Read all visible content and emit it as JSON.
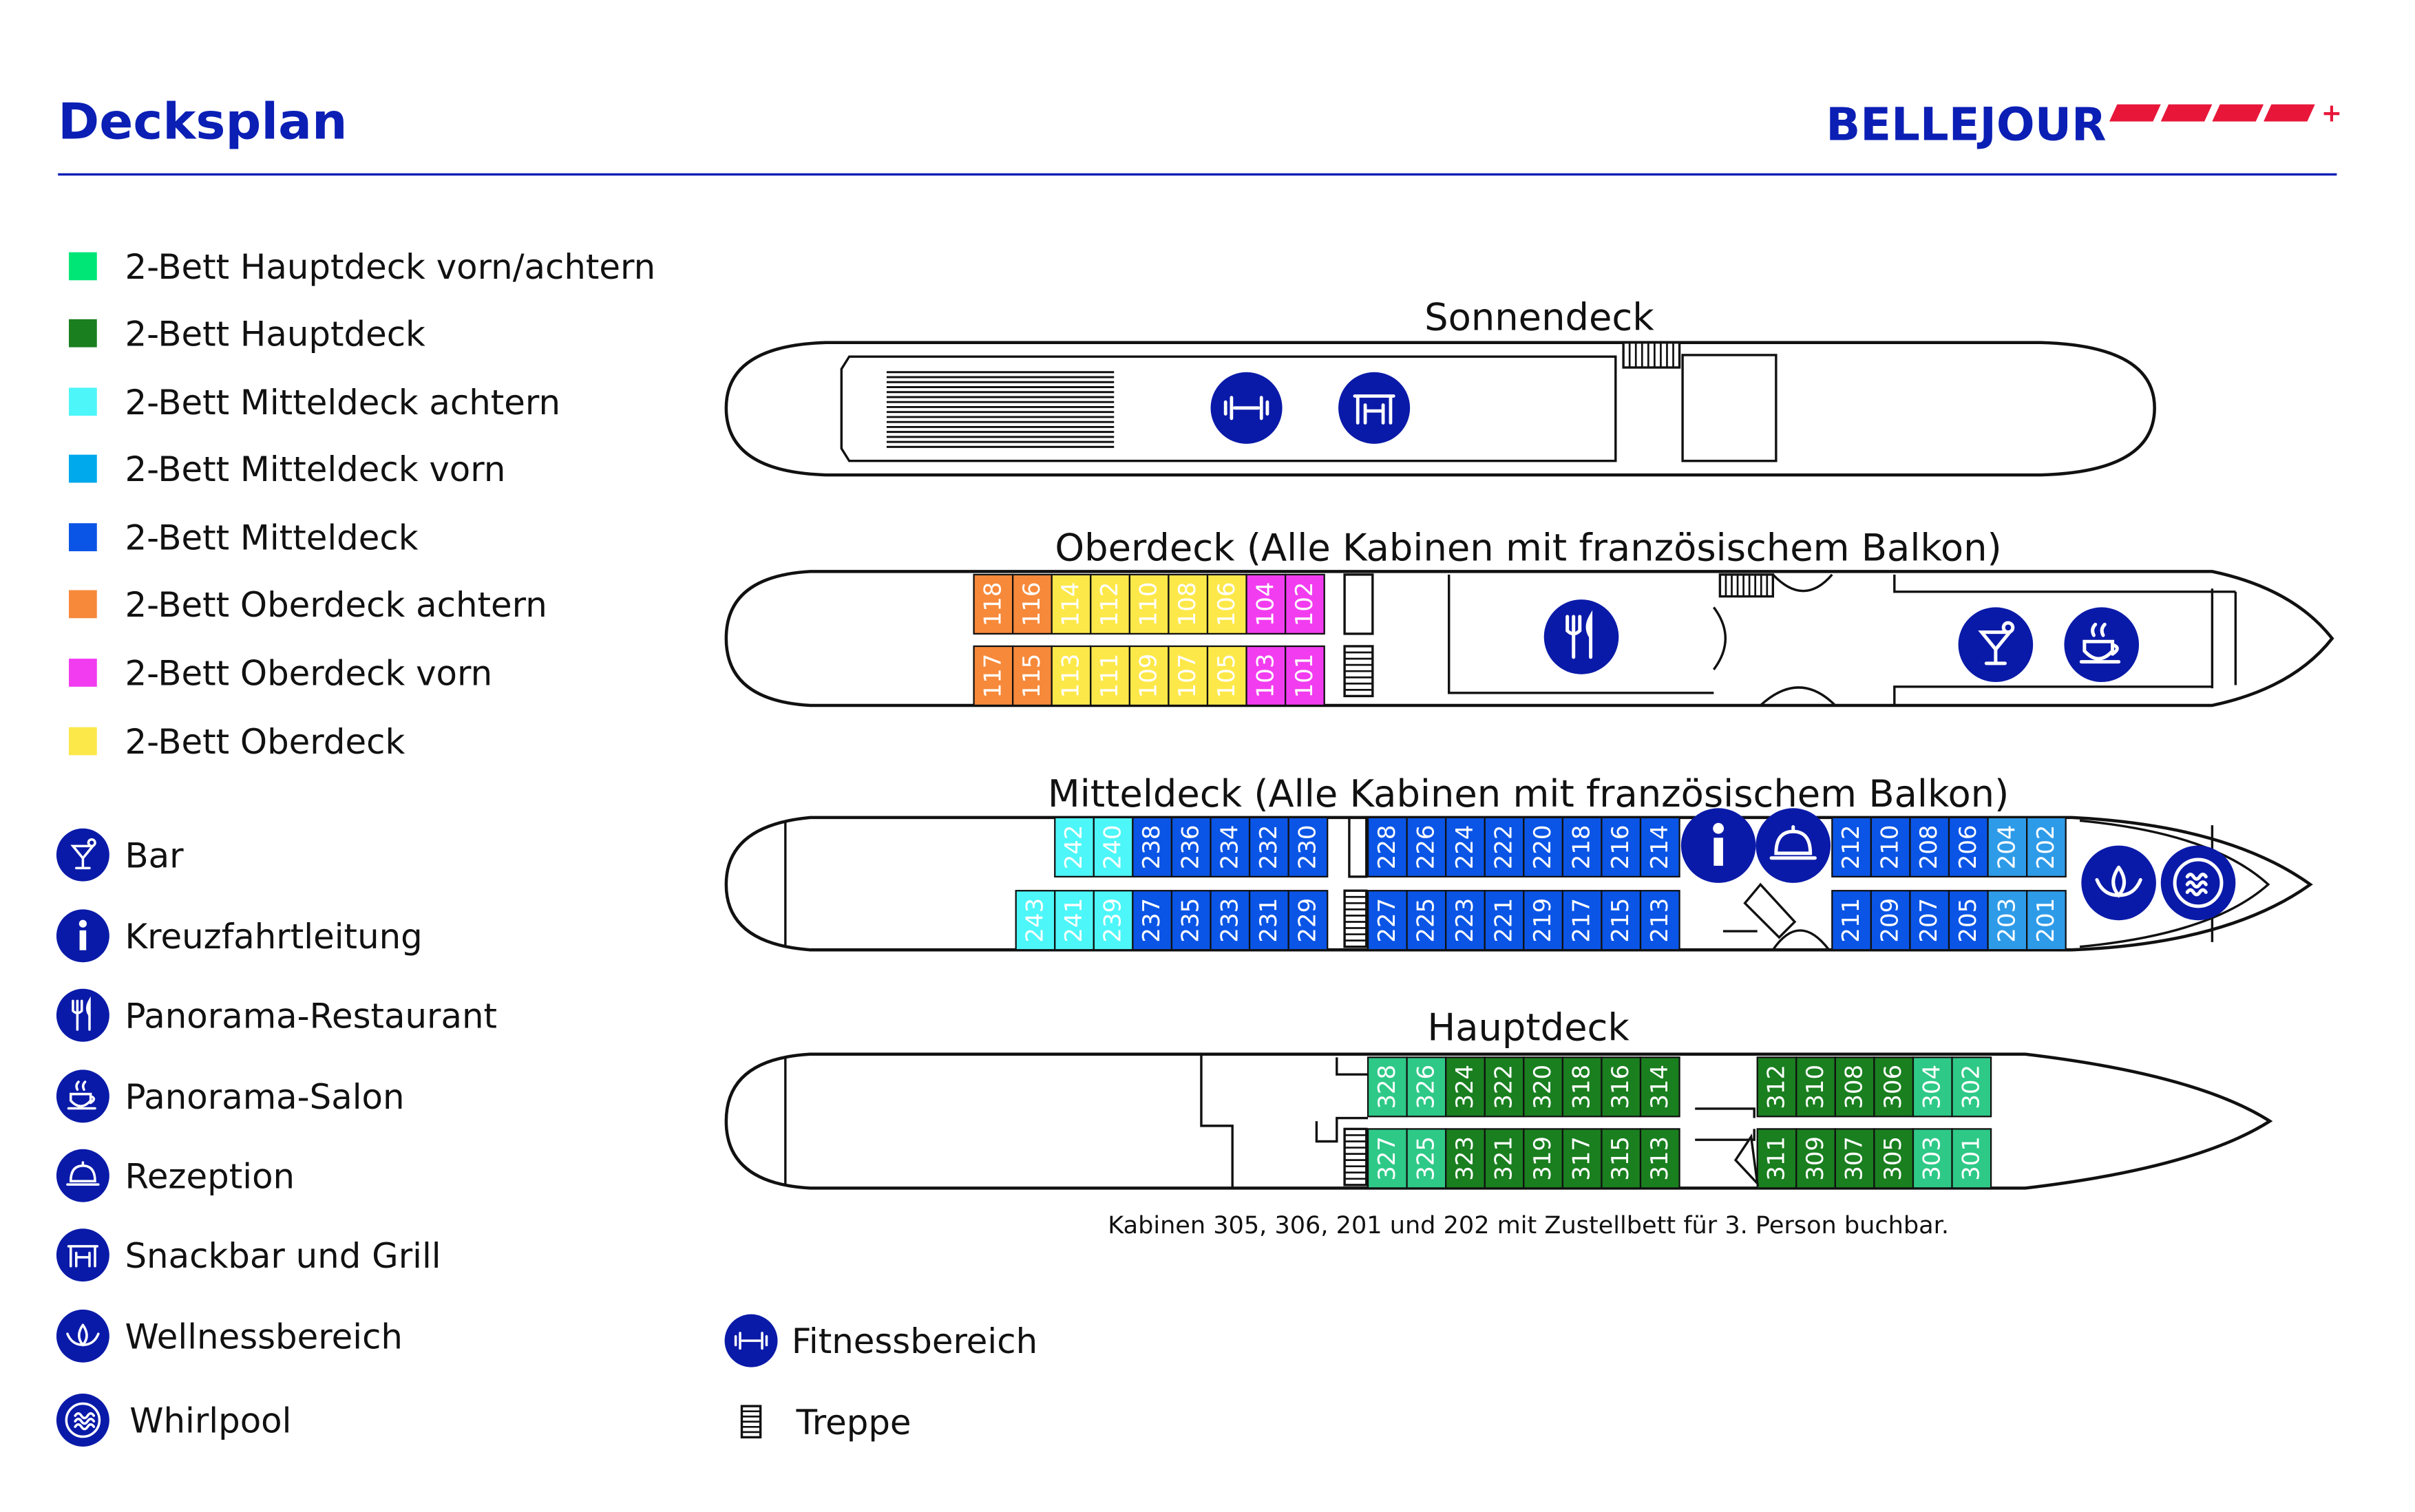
{
  "header": {
    "title": "Decksplan",
    "brand": "BELLEJOUR",
    "brand_plus": "+"
  },
  "colors": {
    "brand_blue": "#0b1fb5",
    "brand_red": "#e8173a",
    "haupt_vorn_achtern": "#2ec987",
    "haupt": "#1a7f1f",
    "mittel_achtern": "#4df6f8",
    "mittel_vorn": "#2e9be8",
    "mittel": "#0a55e6",
    "ober_achtern": "#f7893a",
    "ober_vorn": "#f23cf0",
    "ober": "#fde84a",
    "icon_circle": "#0a1aa8"
  },
  "legend": [
    {
      "label": "2-Bett Hauptdeck vorn/achtern",
      "color": "#00e676"
    },
    {
      "label": "2-Bett Hauptdeck",
      "color": "#1a7f1f"
    },
    {
      "label": "2-Bett Mitteldeck achtern",
      "color": "#4df6f8"
    },
    {
      "label": "2-Bett Mitteldeck vorn",
      "color": "#00a8ec"
    },
    {
      "label": "2-Bett Mitteldeck",
      "color": "#0a55e6"
    },
    {
      "label": "2-Bett Oberdeck achtern",
      "color": "#f7893a"
    },
    {
      "label": "2-Bett Oberdeck vorn",
      "color": "#f23cf0"
    },
    {
      "label": "2-Bett Oberdeck",
      "color": "#fde84a"
    }
  ],
  "icon_legend": [
    {
      "label": "Bar",
      "icon": "cocktail-icon"
    },
    {
      "label": "Kreuzfahrtleitung",
      "icon": "info-icon"
    },
    {
      "label": "Panorama-Restaurant",
      "icon": "cutlery-icon"
    },
    {
      "label": "Panorama-Salon",
      "icon": "coffee-icon"
    },
    {
      "label": "Rezeption",
      "icon": "bell-icon"
    },
    {
      "label": "Snackbar und Grill",
      "icon": "snackbar-icon"
    },
    {
      "label": "Wellnessbereich",
      "icon": "lotus-icon"
    },
    {
      "label": "Whirlpool",
      "icon": "whirlpool-icon"
    },
    {
      "label": "Fitnessbereich",
      "icon": "dumbbell-icon"
    },
    {
      "label": "Treppe",
      "icon": "stairs-icon"
    }
  ],
  "decks": {
    "sonnendeck": {
      "title": "Sonnendeck"
    },
    "oberdeck": {
      "title": "Oberdeck (Alle Kabinen mit französischem Balkon)",
      "top": [
        [
          "118",
          "ober_achtern"
        ],
        [
          "116",
          "ober_achtern"
        ],
        [
          "114",
          "ober"
        ],
        [
          "112",
          "ober"
        ],
        [
          "110",
          "ober"
        ],
        [
          "108",
          "ober"
        ],
        [
          "106",
          "ober"
        ],
        [
          "104",
          "ober_vorn"
        ],
        [
          "102",
          "ober_vorn"
        ]
      ],
      "bottom": [
        [
          "117",
          "ober_achtern"
        ],
        [
          "115",
          "ober_achtern"
        ],
        [
          "113",
          "ober"
        ],
        [
          "111",
          "ober"
        ],
        [
          "109",
          "ober"
        ],
        [
          "107",
          "ober"
        ],
        [
          "105",
          "ober"
        ],
        [
          "103",
          "ober_vorn"
        ],
        [
          "101",
          "ober_vorn"
        ]
      ]
    },
    "mitteldeck": {
      "title": "Mitteldeck (Alle Kabinen mit französischem Balkon)",
      "top_a": [
        [
          "242",
          "mittel_achtern"
        ],
        [
          "240",
          "mittel_achtern"
        ],
        [
          "238",
          "mittel"
        ],
        [
          "236",
          "mittel"
        ],
        [
          "234",
          "mittel"
        ],
        [
          "232",
          "mittel"
        ],
        [
          "230",
          "mittel"
        ]
      ],
      "top_b": [
        [
          "228",
          "mittel"
        ],
        [
          "226",
          "mittel"
        ],
        [
          "224",
          "mittel"
        ],
        [
          "222",
          "mittel"
        ],
        [
          "220",
          "mittel"
        ],
        [
          "218",
          "mittel"
        ],
        [
          "216",
          "mittel"
        ],
        [
          "214",
          "mittel"
        ]
      ],
      "top_c": [
        [
          "212",
          "mittel"
        ],
        [
          "210",
          "mittel"
        ],
        [
          "208",
          "mittel"
        ],
        [
          "206",
          "mittel"
        ],
        [
          "204",
          "mittel_vorn"
        ],
        [
          "202",
          "mittel_vorn"
        ]
      ],
      "bottom_a": [
        [
          "243",
          "mittel_achtern"
        ],
        [
          "241",
          "mittel_achtern"
        ],
        [
          "239",
          "mittel_achtern"
        ],
        [
          "237",
          "mittel"
        ],
        [
          "235",
          "mittel"
        ],
        [
          "233",
          "mittel"
        ],
        [
          "231",
          "mittel"
        ],
        [
          "229",
          "mittel"
        ]
      ],
      "bottom_b": [
        [
          "227",
          "mittel"
        ],
        [
          "225",
          "mittel"
        ],
        [
          "223",
          "mittel"
        ],
        [
          "221",
          "mittel"
        ],
        [
          "219",
          "mittel"
        ],
        [
          "217",
          "mittel"
        ],
        [
          "215",
          "mittel"
        ],
        [
          "213",
          "mittel"
        ]
      ],
      "bottom_c": [
        [
          "211",
          "mittel"
        ],
        [
          "209",
          "mittel"
        ],
        [
          "207",
          "mittel"
        ],
        [
          "205",
          "mittel"
        ],
        [
          "203",
          "mittel_vorn"
        ],
        [
          "201",
          "mittel_vorn"
        ]
      ]
    },
    "hauptdeck": {
      "title": "Hauptdeck",
      "top_b": [
        [
          "328",
          "haupt_vorn_achtern"
        ],
        [
          "326",
          "haupt_vorn_achtern"
        ],
        [
          "324",
          "haupt"
        ],
        [
          "322",
          "haupt"
        ],
        [
          "320",
          "haupt"
        ],
        [
          "318",
          "haupt"
        ],
        [
          "316",
          "haupt"
        ],
        [
          "314",
          "haupt"
        ]
      ],
      "top_c": [
        [
          "312",
          "haupt"
        ],
        [
          "310",
          "haupt"
        ],
        [
          "308",
          "haupt"
        ],
        [
          "306",
          "haupt"
        ],
        [
          "304",
          "haupt_vorn_achtern"
        ],
        [
          "302",
          "haupt_vorn_achtern"
        ]
      ],
      "bottom_b": [
        [
          "327",
          "haupt_vorn_achtern"
        ],
        [
          "325",
          "haupt_vorn_achtern"
        ],
        [
          "323",
          "haupt"
        ],
        [
          "321",
          "haupt"
        ],
        [
          "319",
          "haupt"
        ],
        [
          "317",
          "haupt"
        ],
        [
          "315",
          "haupt"
        ],
        [
          "313",
          "haupt"
        ]
      ],
      "bottom_c": [
        [
          "311",
          "haupt"
        ],
        [
          "309",
          "haupt"
        ],
        [
          "307",
          "haupt"
        ],
        [
          "305",
          "haupt"
        ],
        [
          "303",
          "haupt_vorn_achtern"
        ],
        [
          "301",
          "haupt_vorn_achtern"
        ]
      ]
    },
    "note": "Kabinen 305, 306, 201 und 202 mit Zustellbett für 3. Person buchbar."
  }
}
